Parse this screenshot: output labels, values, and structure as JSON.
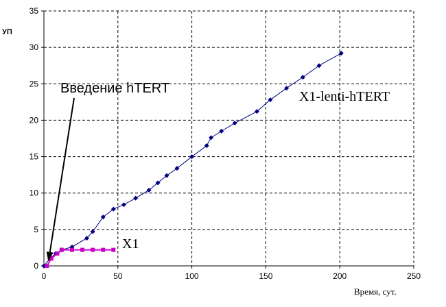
{
  "chart_data": {
    "type": "line",
    "title": "",
    "ylabel": "УП",
    "xlabel": "Время, сут.",
    "xlim": [
      0,
      250
    ],
    "ylim": [
      0,
      35
    ],
    "xticks": [
      0,
      50,
      100,
      150,
      200,
      250
    ],
    "yticks": [
      0,
      5,
      10,
      15,
      20,
      25,
      30,
      35
    ],
    "grid": true,
    "series": [
      {
        "name": "X1-lenti-hTERT",
        "color": "#000080",
        "marker": "diamond",
        "x": [
          0,
          4,
          8,
          12,
          19,
          29,
          33,
          40,
          47,
          54,
          62,
          71,
          77,
          83,
          90,
          100,
          110,
          113,
          120,
          129,
          144,
          153,
          164,
          175,
          186,
          201
        ],
        "y": [
          0,
          1.0,
          1.7,
          2.2,
          2.6,
          3.8,
          4.7,
          6.7,
          7.8,
          8.4,
          9.3,
          10.4,
          11.4,
          12.4,
          13.4,
          15.0,
          16.5,
          17.6,
          18.5,
          19.6,
          21.2,
          22.8,
          24.4,
          25.9,
          27.5,
          29.2
        ]
      },
      {
        "name": "X1",
        "color": "#cc00cc",
        "marker": "square",
        "x": [
          2,
          5,
          9,
          12,
          19,
          26,
          33,
          40,
          47
        ],
        "y": [
          0,
          1.0,
          1.7,
          2.2,
          2.2,
          2.2,
          2.2,
          2.2,
          2.2
        ]
      }
    ],
    "annotations": [
      {
        "text": "Введение hTERT",
        "arrow_to": [
          3,
          0.6
        ]
      }
    ]
  }
}
